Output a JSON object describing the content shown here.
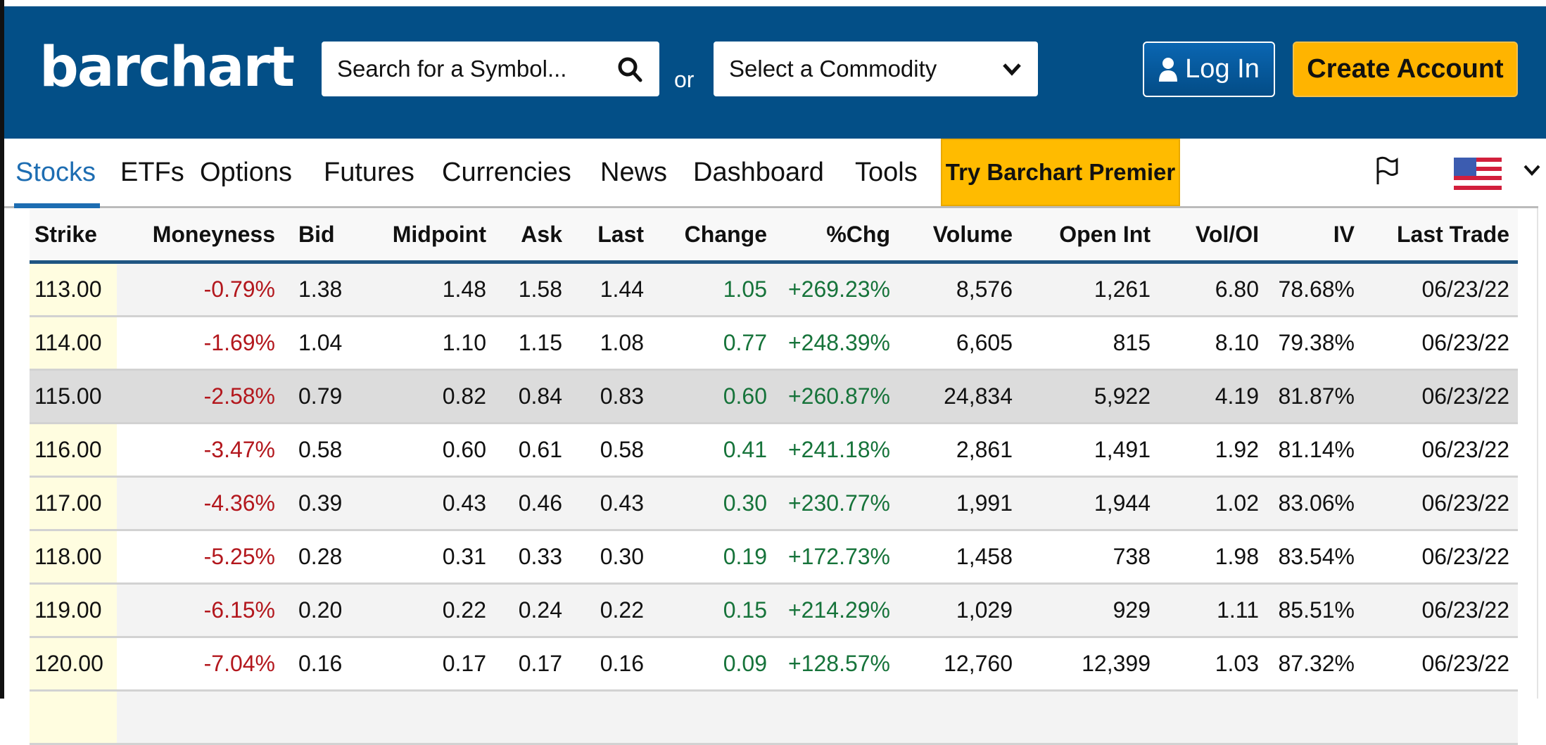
{
  "header": {
    "logo": "barchart",
    "search_placeholder": "Search for a Symbol...",
    "or": "or",
    "commodity_placeholder": "Select a Commodity",
    "login": "Log In",
    "create_account": "Create Account"
  },
  "nav": {
    "items": [
      "Stocks",
      "ETFs",
      "Options",
      "Futures",
      "Currencies",
      "News",
      "Dashboard",
      "Tools"
    ],
    "premier": "Try Barchart Premier",
    "active": "Stocks"
  },
  "colors": {
    "header_bg": "#034f87",
    "accent_yellow": "#ffb400",
    "negative": "#b3171d",
    "positive": "#16733a"
  },
  "table": {
    "columns": [
      "Strike",
      "Moneyness",
      "Bid",
      "Midpoint",
      "Ask",
      "Last",
      "Change",
      "%Chg",
      "Volume",
      "Open Int",
      "Vol/OI",
      "IV",
      "Last Trade"
    ],
    "rows": [
      [
        "113.00",
        "-0.79%",
        "1.38",
        "1.48",
        "1.58",
        "1.44",
        "1.05",
        "+269.23%",
        "8,576",
        "1,261",
        "6.80",
        "78.68%",
        "06/23/22"
      ],
      [
        "114.00",
        "-1.69%",
        "1.04",
        "1.10",
        "1.15",
        "1.08",
        "0.77",
        "+248.39%",
        "6,605",
        "815",
        "8.10",
        "79.38%",
        "06/23/22"
      ],
      [
        "115.00",
        "-2.58%",
        "0.79",
        "0.82",
        "0.84",
        "0.83",
        "0.60",
        "+260.87%",
        "24,834",
        "5,922",
        "4.19",
        "81.87%",
        "06/23/22"
      ],
      [
        "116.00",
        "-3.47%",
        "0.58",
        "0.60",
        "0.61",
        "0.58",
        "0.41",
        "+241.18%",
        "2,861",
        "1,491",
        "1.92",
        "81.14%",
        "06/23/22"
      ],
      [
        "117.00",
        "-4.36%",
        "0.39",
        "0.43",
        "0.46",
        "0.43",
        "0.30",
        "+230.77%",
        "1,991",
        "1,944",
        "1.02",
        "83.06%",
        "06/23/22"
      ],
      [
        "118.00",
        "-5.25%",
        "0.28",
        "0.31",
        "0.33",
        "0.30",
        "0.19",
        "+172.73%",
        "1,458",
        "738",
        "1.98",
        "83.54%",
        "06/23/22"
      ],
      [
        "119.00",
        "-6.15%",
        "0.20",
        "0.22",
        "0.24",
        "0.22",
        "0.15",
        "+214.29%",
        "1,029",
        "929",
        "1.11",
        "85.51%",
        "06/23/22"
      ],
      [
        "120.00",
        "-7.04%",
        "0.16",
        "0.17",
        "0.17",
        "0.16",
        "0.09",
        "+128.57%",
        "12,760",
        "12,399",
        "1.03",
        "87.32%",
        "06/23/22"
      ]
    ]
  }
}
